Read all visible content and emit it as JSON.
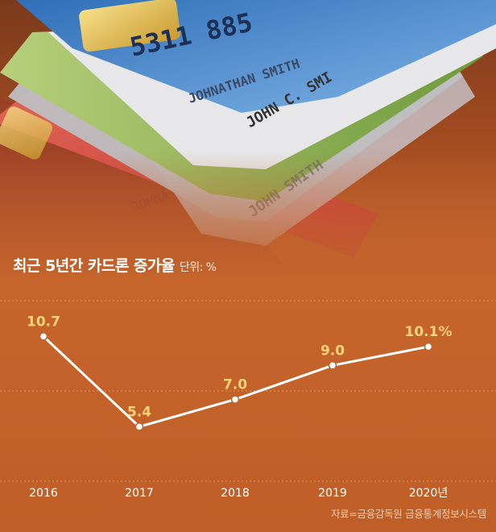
{
  "chart_data": {
    "type": "line",
    "title": "최근 5년간 카드론 증가율",
    "unit": "단위: %",
    "categories": [
      "2016",
      "2017",
      "2018",
      "2019",
      "2020년"
    ],
    "values": [
      10.7,
      5.4,
      7.0,
      9.0,
      10.1
    ],
    "value_labels": [
      "10.7",
      "5.4",
      "7.0",
      "9.0",
      "10.1%"
    ],
    "ylim": [
      2.2,
      12.8
    ],
    "grid": true,
    "line_color": "#ffffff",
    "label_color": "#fbd27a",
    "source": "자료=금융감독원 금융통계정보시스템"
  }
}
